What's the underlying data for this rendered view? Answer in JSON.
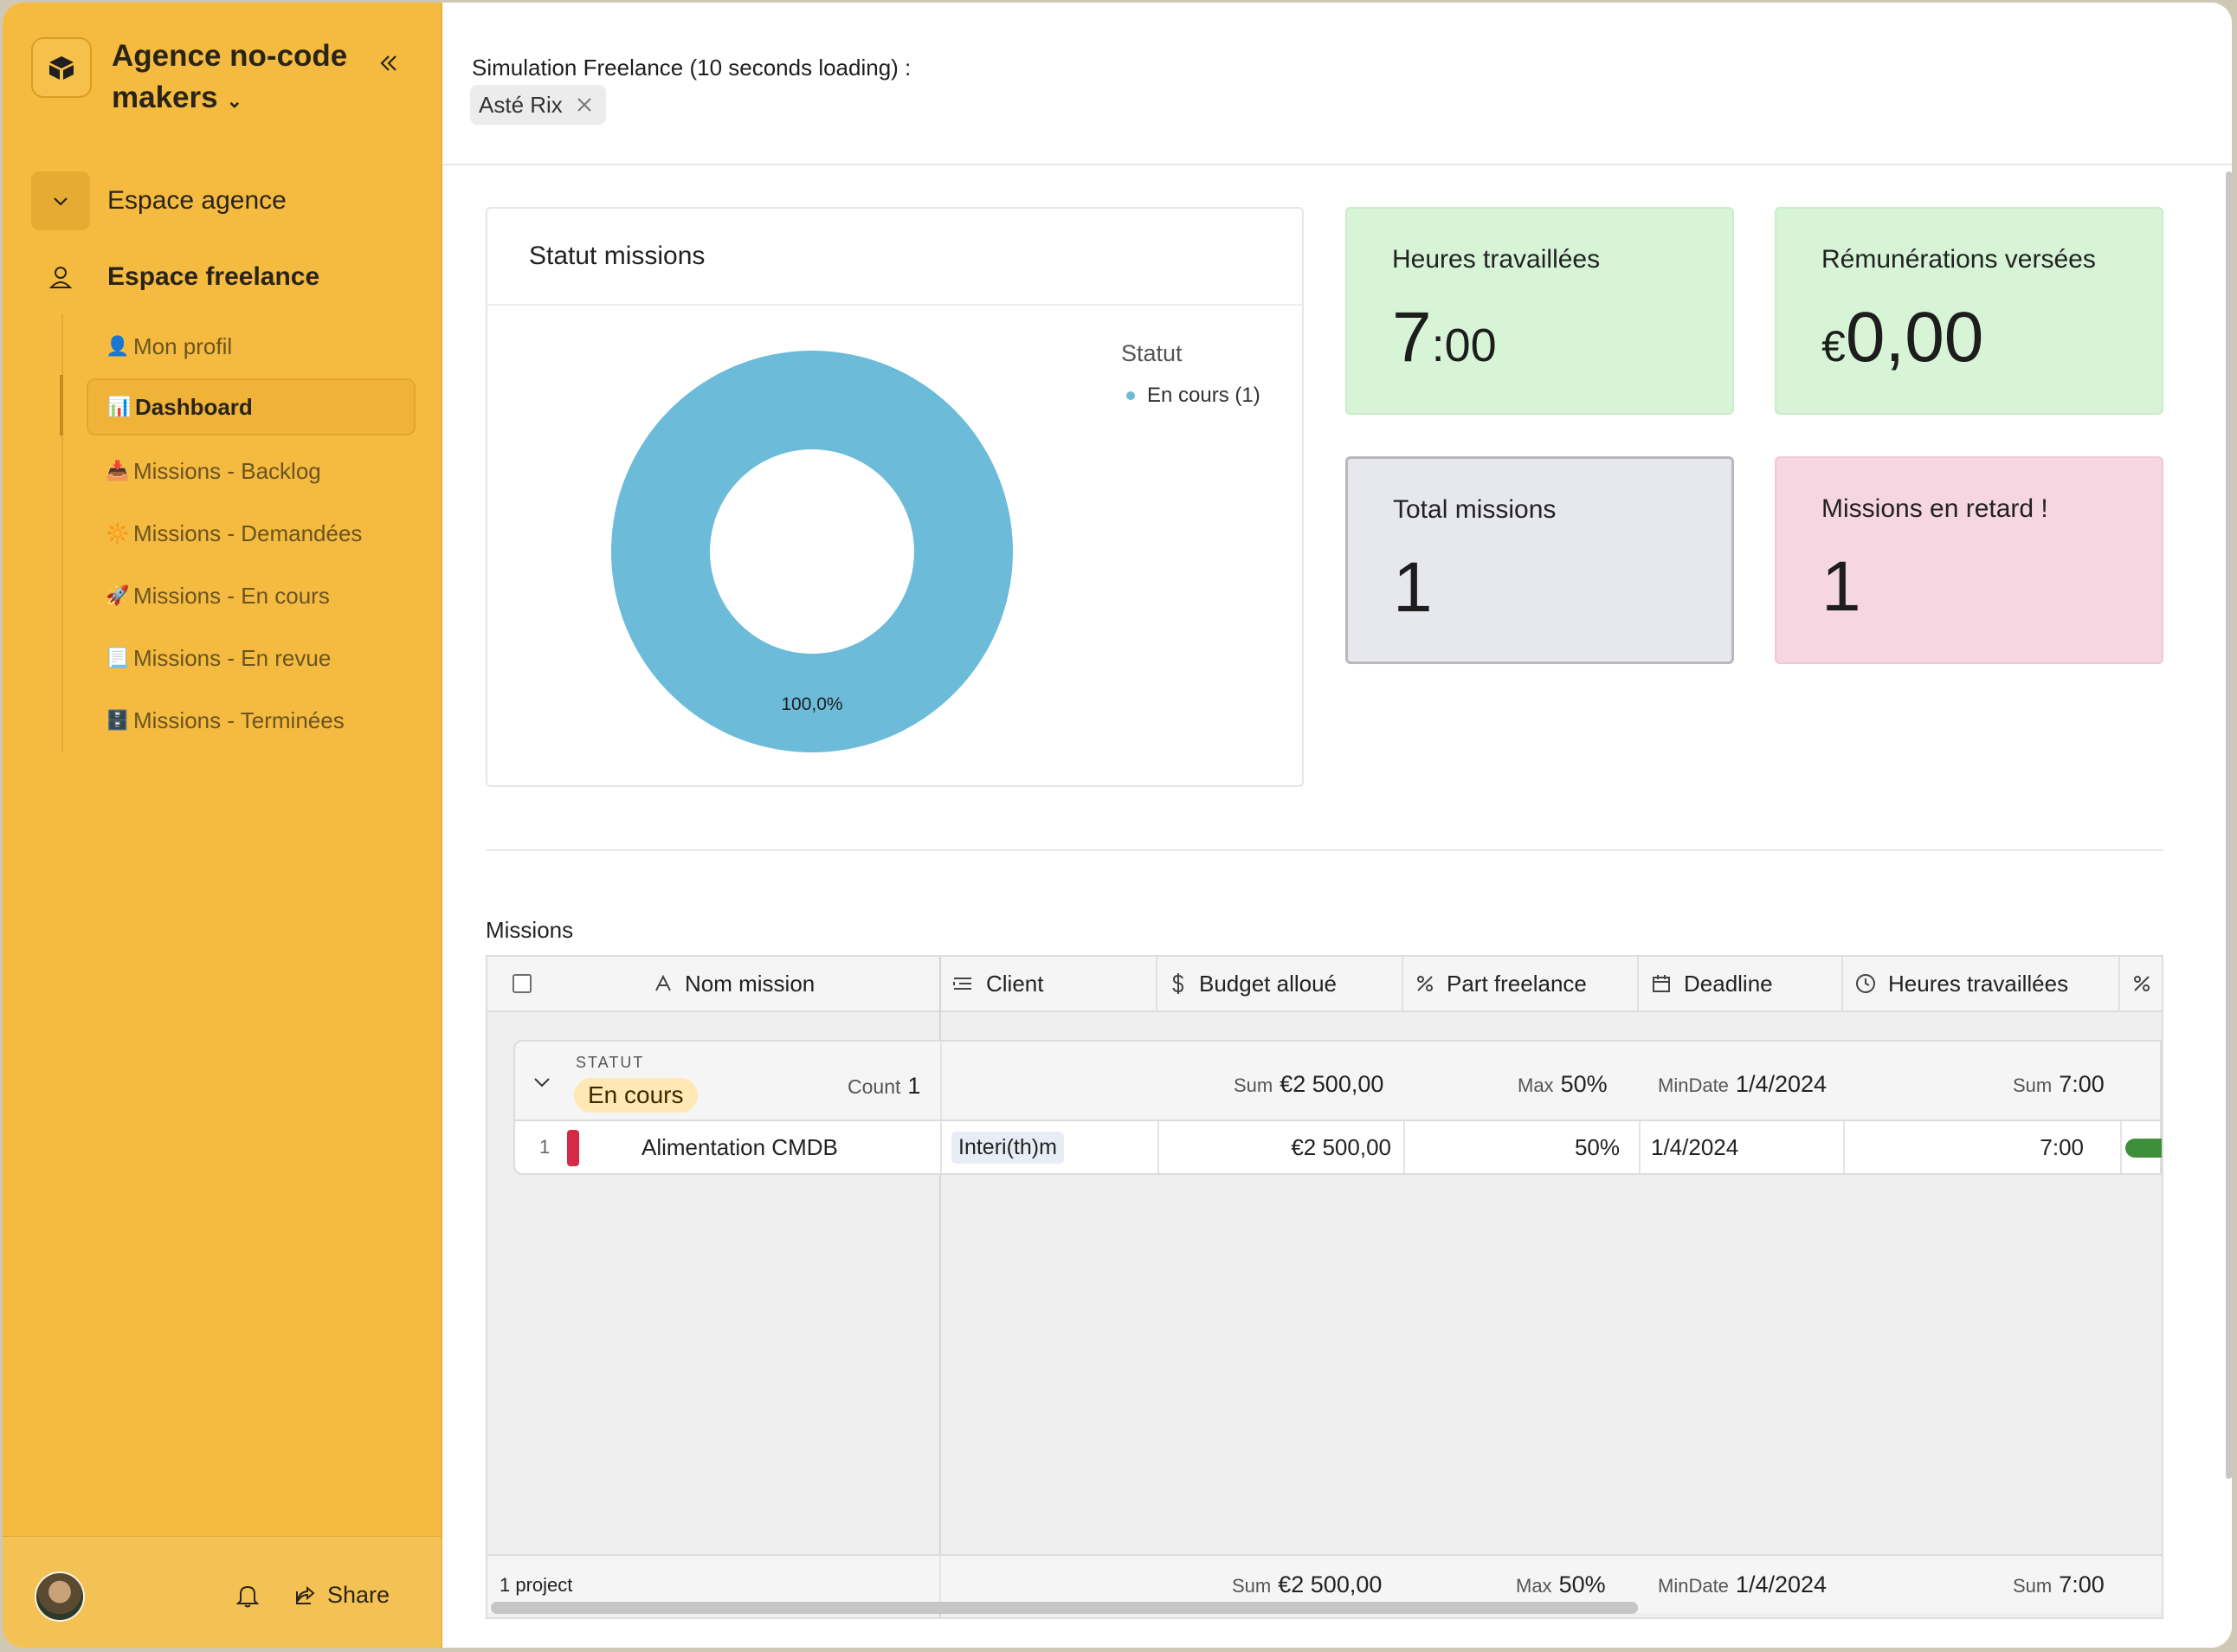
{
  "workspace": {
    "name_line1": "Agence no-code",
    "name_line2": "makers"
  },
  "sidebar": {
    "spaces": [
      {
        "label": "Espace agence",
        "icon": "chevron-down-icon"
      },
      {
        "label": "Espace freelance",
        "icon": "user-icon"
      }
    ],
    "items": [
      {
        "emoji": "👤",
        "label": "Mon profil",
        "active": false
      },
      {
        "emoji": "📊",
        "label": "Dashboard",
        "active": true
      },
      {
        "emoji": "📥",
        "label": "Missions - Backlog",
        "active": false
      },
      {
        "emoji": "🔆",
        "label": "Missions - Demandées",
        "active": false
      },
      {
        "emoji": "🚀",
        "label": "Missions - En cours",
        "active": false
      },
      {
        "emoji": "📃",
        "label": "Missions - En revue",
        "active": false
      },
      {
        "emoji": "🗄️",
        "label": "Missions - Terminées",
        "active": false
      }
    ],
    "footer": {
      "share_label": "Share"
    }
  },
  "topbar": {
    "simulation_label": "Simulation Freelance (10 seconds loading) :",
    "selected_user": "Asté Rix"
  },
  "chart_card": {
    "title": "Statut missions",
    "legend_title": "Statut",
    "legend_item": "En cours (1)"
  },
  "chart_data": {
    "type": "pie",
    "donut": true,
    "categories": [
      "En cours"
    ],
    "values": [
      1
    ],
    "colors": [
      "#6bbbd9"
    ],
    "data_labels": [
      "100,0%"
    ],
    "legend_title": "Statut",
    "legend_position": "right"
  },
  "kpis": {
    "hours": {
      "title": "Heures travaillées",
      "value_main": "7",
      "value_sub": ":00"
    },
    "remuneration": {
      "title": "Rémunérations versées",
      "currency": "€",
      "value": "0,00"
    },
    "total": {
      "title": "Total missions",
      "value": "1"
    },
    "late": {
      "title": "Missions en retard !",
      "value": "1"
    }
  },
  "missions": {
    "title": "Missions",
    "columns": [
      {
        "label": "Nom mission",
        "icon": "text-icon"
      },
      {
        "label": "Client",
        "icon": "link-icon"
      },
      {
        "label": "Budget alloué",
        "icon": "dollar-icon"
      },
      {
        "label": "Part freelance",
        "icon": "percent-icon"
      },
      {
        "label": "Deadline",
        "icon": "calendar-icon"
      },
      {
        "label": "Heures travaillées",
        "icon": "clock-icon"
      },
      {
        "label": "",
        "icon": "percent-icon"
      }
    ],
    "group": {
      "field_label": "STATUT",
      "value": "En cours",
      "count_label": "Count",
      "count": "1",
      "sum_label": "Sum",
      "max_label": "Max",
      "mindate_label": "MinDate",
      "budget_sum": "€2 500,00",
      "part_max": "50%",
      "deadline_min": "1/4/2024",
      "hours_sum": "7:00"
    },
    "rows": [
      {
        "num": "1",
        "name": "Alimentation CMDB",
        "client": "Interi(th)m",
        "budget": "€2 500,00",
        "part": "50%",
        "deadline": "1/4/2024",
        "hours": "7:00",
        "progress": 1.0
      }
    ],
    "footer": {
      "count_text": "1 project",
      "sum_label": "Sum",
      "max_label": "Max",
      "mindate_label": "MinDate",
      "budget_sum": "€2 500,00",
      "part_max": "50%",
      "deadline_min": "1/4/2024",
      "hours_sum": "7:00"
    }
  }
}
